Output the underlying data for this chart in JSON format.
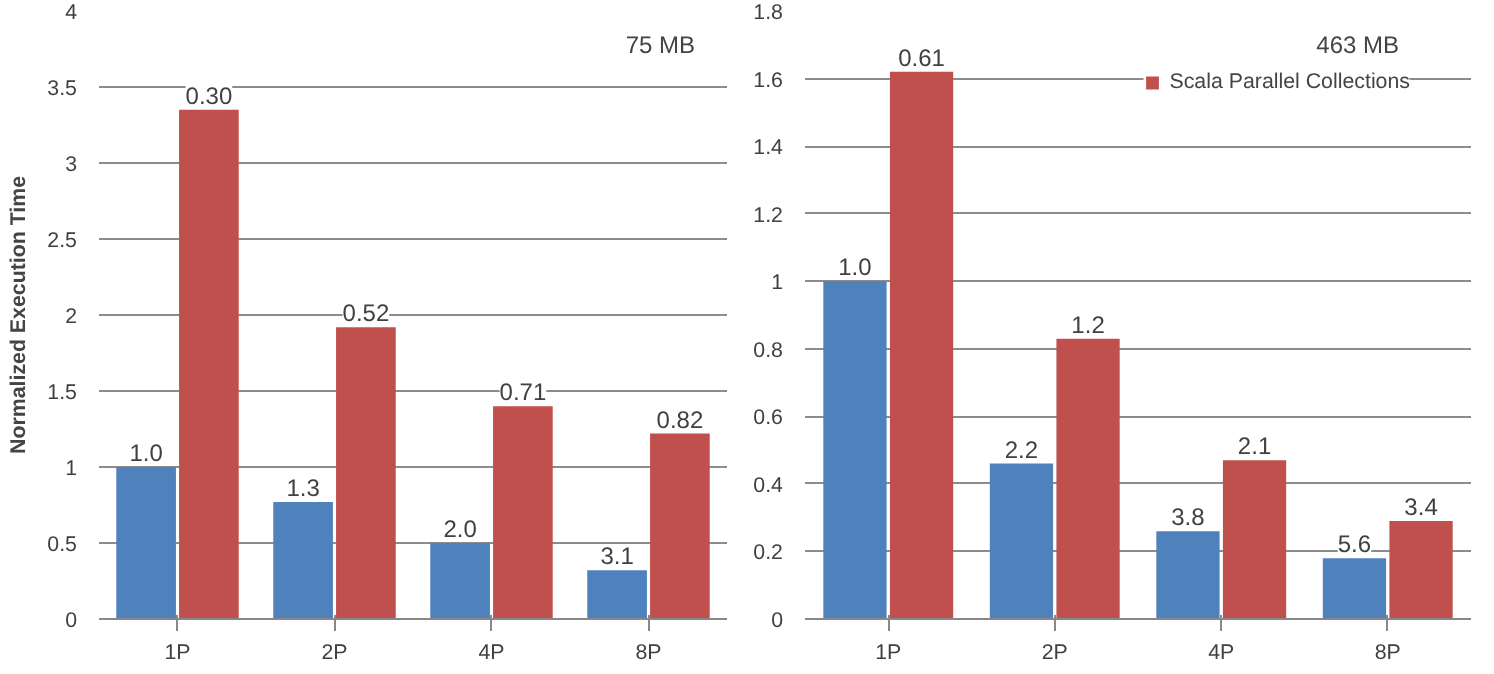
{
  "chart_data": [
    {
      "type": "bar",
      "ylabel": "Normalized Execution Time",
      "categories": [
        "1P",
        "2P",
        "4P",
        "8P"
      ],
      "ylim": [
        0,
        4
      ],
      "yticks": [
        0,
        0.5,
        1,
        1.5,
        2,
        2.5,
        3,
        3.5,
        4
      ],
      "grid": "y",
      "legend": false,
      "annotations": [
        "75 MB",
        {
          "text": "1.0",
          "x": "1P",
          "y": 1.0
        },
        {
          "text": "1.3",
          "x": "2P",
          "y": 0.77
        },
        {
          "text": "2.0",
          "x": "4P",
          "y": 0.5
        },
        {
          "text": "3.1",
          "x": "8P",
          "y": 0.32
        },
        {
          "text": "0.30",
          "x": "1P",
          "y": 3.35
        },
        {
          "text": "0.52",
          "x": "2P",
          "y": 1.92
        },
        {
          "text": "0.71",
          "x": "4P",
          "y": 1.4
        },
        {
          "text": "0.82",
          "x": "8P",
          "y": 1.22
        }
      ],
      "series": [
        {
          "color": "#4f81bd",
          "values": [
            1.0,
            0.77,
            0.5,
            0.32
          ]
        },
        {
          "color": "#c0504d",
          "values": [
            3.35,
            1.92,
            1.4,
            1.22
          ]
        }
      ]
    },
    {
      "type": "bar",
      "categories": [
        "1P",
        "2P",
        "4P",
        "8P"
      ],
      "ylim": [
        0,
        1.8
      ],
      "yticks": [
        0,
        0.2,
        0.4,
        0.6,
        0.8,
        1,
        1.2,
        1.4,
        1.6,
        1.8
      ],
      "grid": "y",
      "legend": "top right",
      "annotations": [
        "463 MB",
        {
          "text": "1.0",
          "x": "1P",
          "y": 1.0
        },
        {
          "text": "2.2",
          "x": "2P",
          "y": 0.46
        },
        {
          "text": "3.8",
          "x": "4P",
          "y": 0.26
        },
        {
          "text": "5.6",
          "x": "8P",
          "y": 0.18
        },
        {
          "text": "0.61",
          "x": "1P",
          "y": 1.62
        },
        {
          "text": "1.2",
          "x": "2P",
          "y": 0.83
        },
        {
          "text": "2.1",
          "x": "4P",
          "y": 0.47
        },
        {
          "text": "3.4",
          "x": "8P",
          "y": 0.29
        }
      ],
      "series": [
        {
          "color": "#4f81bd",
          "values": [
            1.0,
            0.46,
            0.26,
            0.18
          ]
        },
        {
          "name": "Scala Parallel Collections",
          "color": "#c0504d",
          "values": [
            1.62,
            0.83,
            0.47,
            0.29
          ]
        }
      ]
    }
  ]
}
